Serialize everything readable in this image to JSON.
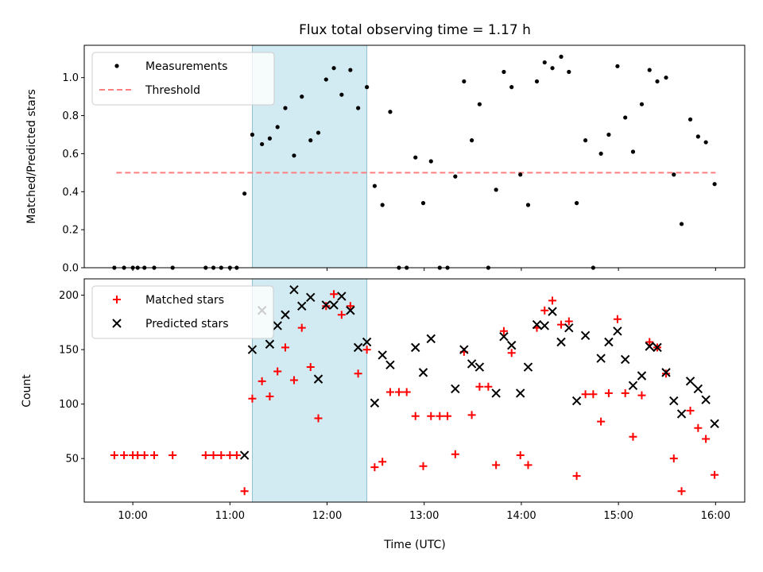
{
  "chart_data": {
    "title": "Flux total observing time = 1.17 h",
    "xlabel": "Time (UTC)",
    "xlim": [
      9.5,
      16.3
    ],
    "xticks": [
      {
        "v": 10,
        "label": "10:00"
      },
      {
        "v": 11,
        "label": "11:00"
      },
      {
        "v": 12,
        "label": "12:00"
      },
      {
        "v": 13,
        "label": "13:00"
      },
      {
        "v": 14,
        "label": "14:00"
      },
      {
        "v": 15,
        "label": "15:00"
      },
      {
        "v": 16,
        "label": "16:00"
      }
    ],
    "highlight": {
      "x0": 11.23,
      "x1": 12.41,
      "color": "#add8e6"
    },
    "panels": [
      {
        "type": "scatter",
        "ylabel": "Matched/Predicted stars",
        "ylim": [
          0,
          1.17
        ],
        "yticks": [
          {
            "v": 0,
            "label": "0.0"
          },
          {
            "v": 0.2,
            "label": "0.2"
          },
          {
            "v": 0.4,
            "label": "0.4"
          },
          {
            "v": 0.6,
            "label": "0.6"
          },
          {
            "v": 0.8,
            "label": "0.8"
          },
          {
            "v": 1.0,
            "label": "1.0"
          }
        ],
        "legend": {
          "position": "top-left",
          "entries": [
            {
              "label": "Measurements",
              "marker": "dot",
              "color": "#000000"
            },
            {
              "label": "Threshold",
              "marker": "dash",
              "color": "#ff7f7f"
            }
          ]
        },
        "threshold": {
          "value": 0.5,
          "x0": 9.83,
          "x1": 16.0,
          "color": "#ff7f7f"
        },
        "series": [
          {
            "name": "Measurements",
            "color": "#000000",
            "points": [
              [
                9.81,
                0
              ],
              [
                9.91,
                0
              ],
              [
                10.0,
                0
              ],
              [
                10.05,
                0
              ],
              [
                10.12,
                0
              ],
              [
                10.22,
                0
              ],
              [
                10.41,
                0
              ],
              [
                10.75,
                0
              ],
              [
                10.83,
                0
              ],
              [
                10.91,
                0
              ],
              [
                11.0,
                0
              ],
              [
                11.07,
                0
              ],
              [
                11.15,
                0.39
              ],
              [
                11.23,
                0.7
              ],
              [
                11.33,
                0.65
              ],
              [
                11.41,
                0.68
              ],
              [
                11.49,
                0.74
              ],
              [
                11.57,
                0.84
              ],
              [
                11.66,
                0.59
              ],
              [
                11.74,
                0.9
              ],
              [
                11.83,
                0.67
              ],
              [
                11.91,
                0.71
              ],
              [
                11.99,
                0.99
              ],
              [
                12.07,
                1.05
              ],
              [
                12.15,
                0.91
              ],
              [
                12.24,
                1.04
              ],
              [
                12.32,
                0.84
              ],
              [
                12.41,
                0.95
              ],
              [
                12.49,
                0.43
              ],
              [
                12.57,
                0.33
              ],
              [
                12.65,
                0.82
              ],
              [
                12.74,
                0
              ],
              [
                12.82,
                0
              ],
              [
                12.91,
                0.58
              ],
              [
                12.99,
                0.34
              ],
              [
                13.07,
                0.56
              ],
              [
                13.16,
                0
              ],
              [
                13.24,
                0
              ],
              [
                13.32,
                0.48
              ],
              [
                13.41,
                0.98
              ],
              [
                13.49,
                0.67
              ],
              [
                13.57,
                0.86
              ],
              [
                13.66,
                0
              ],
              [
                13.74,
                0.41
              ],
              [
                13.82,
                1.03
              ],
              [
                13.9,
                0.95
              ],
              [
                13.99,
                0.49
              ],
              [
                14.07,
                0.33
              ],
              [
                14.16,
                0.98
              ],
              [
                14.24,
                1.08
              ],
              [
                14.32,
                1.05
              ],
              [
                14.41,
                1.11
              ],
              [
                14.49,
                1.03
              ],
              [
                14.57,
                0.34
              ],
              [
                14.66,
                0.67
              ],
              [
                14.74,
                0
              ],
              [
                14.82,
                0.6
              ],
              [
                14.9,
                0.7
              ],
              [
                14.99,
                1.06
              ],
              [
                15.07,
                0.79
              ],
              [
                15.15,
                0.61
              ],
              [
                15.24,
                0.86
              ],
              [
                15.32,
                1.04
              ],
              [
                15.4,
                0.98
              ],
              [
                15.49,
                1.0
              ],
              [
                15.57,
                0.49
              ],
              [
                15.65,
                0.23
              ],
              [
                15.74,
                0.78
              ],
              [
                15.82,
                0.69
              ],
              [
                15.9,
                0.66
              ],
              [
                15.99,
                0.44
              ]
            ]
          }
        ]
      },
      {
        "type": "scatter",
        "ylabel": "Count",
        "ylim": [
          10,
          215
        ],
        "yticks": [
          {
            "v": 50,
            "label": "50"
          },
          {
            "v": 100,
            "label": "100"
          },
          {
            "v": 150,
            "label": "150"
          },
          {
            "v": 200,
            "label": "200"
          }
        ],
        "legend": {
          "position": "top-left",
          "entries": [
            {
              "label": "Matched stars",
              "marker": "plus",
              "color": "#ff0000"
            },
            {
              "label": "Predicted stars",
              "marker": "x",
              "color": "#000000"
            }
          ]
        },
        "series": [
          {
            "name": "Matched stars",
            "marker": "plus",
            "color": "#ff0000",
            "points": [
              [
                9.81,
                53
              ],
              [
                9.91,
                53
              ],
              [
                10.0,
                53
              ],
              [
                10.05,
                53
              ],
              [
                10.12,
                53
              ],
              [
                10.22,
                53
              ],
              [
                10.41,
                53
              ],
              [
                10.75,
                53
              ],
              [
                10.83,
                53
              ],
              [
                10.91,
                53
              ],
              [
                11.0,
                53
              ],
              [
                11.07,
                53
              ],
              [
                11.15,
                20
              ],
              [
                11.23,
                105
              ],
              [
                11.33,
                121
              ],
              [
                11.41,
                107
              ],
              [
                11.49,
                130
              ],
              [
                11.57,
                152
              ],
              [
                11.66,
                122
              ],
              [
                11.74,
                170
              ],
              [
                11.83,
                134
              ],
              [
                11.91,
                87
              ],
              [
                11.99,
                190
              ],
              [
                12.07,
                201
              ],
              [
                12.15,
                182
              ],
              [
                12.24,
                190
              ],
              [
                12.32,
                128
              ],
              [
                12.41,
                150
              ],
              [
                12.49,
                42
              ],
              [
                12.57,
                47
              ],
              [
                12.65,
                111
              ],
              [
                12.74,
                111
              ],
              [
                12.82,
                111
              ],
              [
                12.91,
                89
              ],
              [
                12.99,
                43
              ],
              [
                13.07,
                89
              ],
              [
                13.16,
                89
              ],
              [
                13.24,
                89
              ],
              [
                13.32,
                54
              ],
              [
                13.41,
                148
              ],
              [
                13.49,
                90
              ],
              [
                13.57,
                116
              ],
              [
                13.66,
                116
              ],
              [
                13.74,
                44
              ],
              [
                13.82,
                167
              ],
              [
                13.9,
                147
              ],
              [
                13.99,
                53
              ],
              [
                14.07,
                44
              ],
              [
                14.16,
                170
              ],
              [
                14.24,
                186
              ],
              [
                14.32,
                195
              ],
              [
                14.41,
                173
              ],
              [
                14.49,
                176
              ],
              [
                14.57,
                34
              ],
              [
                14.66,
                109
              ],
              [
                14.74,
                109
              ],
              [
                14.82,
                84
              ],
              [
                14.9,
                110
              ],
              [
                14.99,
                178
              ],
              [
                15.07,
                110
              ],
              [
                15.15,
                70
              ],
              [
                15.24,
                108
              ],
              [
                15.32,
                157
              ],
              [
                15.4,
                152
              ],
              [
                15.49,
                128
              ],
              [
                15.57,
                50
              ],
              [
                15.65,
                20
              ],
              [
                15.74,
                94
              ],
              [
                15.82,
                78
              ],
              [
                15.9,
                68
              ],
              [
                15.99,
                35
              ]
            ]
          },
          {
            "name": "Predicted stars",
            "marker": "x",
            "color": "#000000",
            "points": [
              [
                11.15,
                53
              ],
              [
                11.23,
                150
              ],
              [
                11.33,
                186
              ],
              [
                11.41,
                155
              ],
              [
                11.49,
                172
              ],
              [
                11.57,
                182
              ],
              [
                11.66,
                205
              ],
              [
                11.74,
                190
              ],
              [
                11.83,
                198
              ],
              [
                11.91,
                123
              ],
              [
                11.99,
                191
              ],
              [
                12.07,
                191
              ],
              [
                12.15,
                199
              ],
              [
                12.24,
                186
              ],
              [
                12.32,
                152
              ],
              [
                12.41,
                157
              ],
              [
                12.49,
                101
              ],
              [
                12.57,
                145
              ],
              [
                12.65,
                136
              ],
              [
                12.91,
                152
              ],
              [
                12.99,
                129
              ],
              [
                13.07,
                160
              ],
              [
                13.32,
                114
              ],
              [
                13.41,
                150
              ],
              [
                13.49,
                137
              ],
              [
                13.57,
                134
              ],
              [
                13.74,
                110
              ],
              [
                13.82,
                162
              ],
              [
                13.9,
                154
              ],
              [
                13.99,
                110
              ],
              [
                14.07,
                134
              ],
              [
                14.16,
                173
              ],
              [
                14.24,
                172
              ],
              [
                14.32,
                185
              ],
              [
                14.41,
                157
              ],
              [
                14.49,
                170
              ],
              [
                14.57,
                103
              ],
              [
                14.66,
                163
              ],
              [
                14.82,
                142
              ],
              [
                14.9,
                157
              ],
              [
                14.99,
                167
              ],
              [
                15.07,
                141
              ],
              [
                15.15,
                117
              ],
              [
                15.24,
                126
              ],
              [
                15.32,
                153
              ],
              [
                15.4,
                152
              ],
              [
                15.49,
                129
              ],
              [
                15.57,
                103
              ],
              [
                15.65,
                91
              ],
              [
                15.74,
                121
              ],
              [
                15.82,
                114
              ],
              [
                15.9,
                104
              ],
              [
                15.99,
                82
              ]
            ]
          }
        ]
      }
    ]
  }
}
